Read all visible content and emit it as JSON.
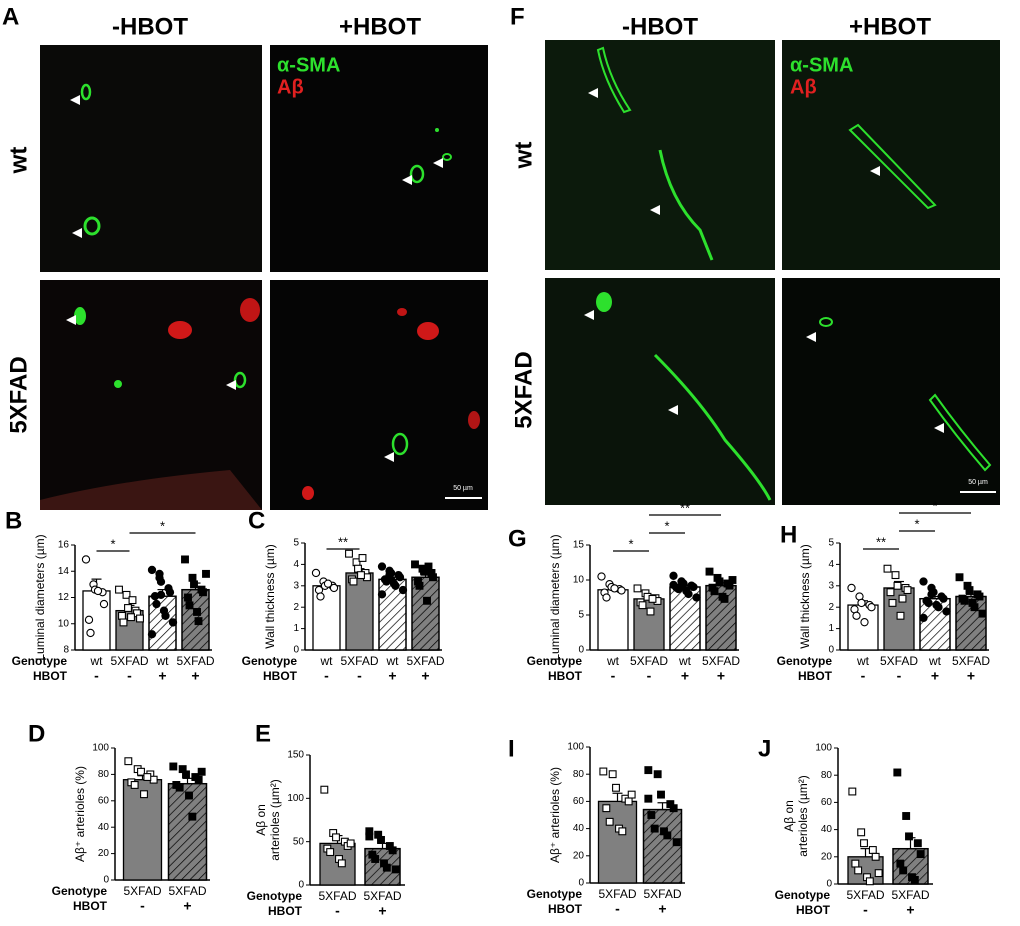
{
  "image_panels": [
    {
      "panel": "A",
      "columns": [
        "-HBOT",
        "+HBOT"
      ],
      "rows": [
        "wt",
        "5XFAD"
      ],
      "legend": [
        "α-SMA",
        "Aβ"
      ],
      "scale_bar": "50 µm"
    },
    {
      "panel": "F",
      "columns": [
        "-HBOT",
        "+HBOT"
      ],
      "rows": [
        "wt",
        "5XFAD"
      ],
      "legend": [
        "α-SMA",
        "Aβ"
      ],
      "scale_bar": "50 µm"
    }
  ],
  "chart_data": [
    {
      "type": "bar",
      "panel": "B",
      "ylabel": [
        "Luminal diameters (µm)"
      ],
      "row_labels": [
        "Genotype",
        "HBOT"
      ],
      "categories": [
        "wt",
        "5XFAD",
        "wt",
        "5XFAD"
      ],
      "hbot": [
        "-",
        "-",
        "+",
        "+"
      ],
      "values": [
        12.5,
        11.0,
        12.1,
        12.6
      ],
      "errors": [
        0.9,
        0.4,
        0.5,
        0.5
      ],
      "colors": [
        "#ffffff",
        "#808080",
        "#ffffff",
        "#808080"
      ],
      "hatched": [
        false,
        false,
        true,
        true
      ],
      "markers": [
        "circle",
        "square",
        "circle",
        "square"
      ],
      "filled": [
        false,
        false,
        true,
        true
      ],
      "points": [
        [
          14.9,
          13.0,
          12.6,
          12.4,
          11.5,
          10.3,
          9.3,
          12.5
        ],
        [
          12.6,
          12.2,
          11.2,
          11.0,
          10.8,
          10.6,
          10.1,
          10.5,
          11.8,
          10.4
        ],
        [
          14.1,
          13.8,
          13.2,
          12.7,
          12.4,
          12.1,
          11.5,
          11.0,
          10.6,
          10.1,
          9.2,
          13.5,
          12.2
        ],
        [
          14.9,
          13.5,
          13.0,
          12.6,
          12.4,
          12.0,
          11.4,
          10.9,
          10.2,
          13.8
        ]
      ],
      "ylim": [
        8,
        16
      ],
      "yticks": [
        8,
        10,
        12,
        14,
        16
      ],
      "significance": [
        {
          "label": "*",
          "pair": [
            0,
            1
          ]
        },
        {
          "label": "*",
          "pair": [
            1,
            3
          ]
        }
      ]
    },
    {
      "type": "bar",
      "panel": "C",
      "ylabel": [
        "Wall thickness (µm)"
      ],
      "row_labels": [
        "Genotype",
        "HBOT"
      ],
      "categories": [
        "wt",
        "5XFAD",
        "wt",
        "5XFAD"
      ],
      "hbot": [
        "-",
        "-",
        "+",
        "+"
      ],
      "values": [
        3.0,
        3.6,
        3.3,
        3.4
      ],
      "errors": [
        0.1,
        0.2,
        0.1,
        0.1
      ],
      "colors": [
        "#ffffff",
        "#808080",
        "#ffffff",
        "#808080"
      ],
      "hatched": [
        false,
        false,
        true,
        true
      ],
      "markers": [
        "circle",
        "square",
        "circle",
        "square"
      ],
      "filled": [
        false,
        false,
        true,
        true
      ],
      "points": [
        [
          3.6,
          3.2,
          3.0,
          3.0,
          2.9,
          2.8,
          2.5,
          3.1
        ],
        [
          4.5,
          4.1,
          3.8,
          3.6,
          3.4,
          3.3,
          3.2,
          3.5,
          4.3
        ],
        [
          3.9,
          3.7,
          3.6,
          3.5,
          3.4,
          3.3,
          3.2,
          3.1,
          3.0,
          2.8,
          2.6,
          3.5,
          3.3
        ],
        [
          4.0,
          3.8,
          3.7,
          3.6,
          3.4,
          3.2,
          3.0,
          2.3,
          3.9
        ]
      ],
      "ylim": [
        0,
        5
      ],
      "yticks": [
        0,
        1,
        2,
        3,
        4,
        5
      ],
      "significance": [
        {
          "label": "**",
          "pair": [
            0,
            1
          ]
        }
      ]
    },
    {
      "type": "bar",
      "panel": "G",
      "ylabel": [
        "Luminal diameters (µm)"
      ],
      "row_labels": [
        "Genotype",
        "HBOT"
      ],
      "categories": [
        "wt",
        "5XFAD",
        "wt",
        "5XFAD"
      ],
      "hbot": [
        "-",
        "-",
        "+",
        "+"
      ],
      "values": [
        8.6,
        7.3,
        9.0,
        9.2
      ],
      "errors": [
        0.5,
        0.4,
        0.2,
        0.4
      ],
      "colors": [
        "#ffffff",
        "#808080",
        "#ffffff",
        "#808080"
      ],
      "hatched": [
        false,
        false,
        true,
        true
      ],
      "markers": [
        "circle",
        "square",
        "circle",
        "square"
      ],
      "filled": [
        false,
        false,
        true,
        true
      ],
      "points": [
        [
          10.5,
          9.4,
          9.0,
          8.7,
          8.5,
          8.2,
          7.5,
          8.8
        ],
        [
          8.8,
          8.1,
          7.6,
          7.4,
          7.0,
          6.8,
          6.4,
          5.5,
          7.3
        ],
        [
          10.6,
          9.8,
          9.5,
          9.2,
          9.0,
          8.9,
          8.7,
          8.4,
          8.0,
          7.5,
          9.3,
          9.1
        ],
        [
          11.2,
          10.3,
          9.8,
          9.5,
          9.2,
          8.9,
          8.4,
          7.6,
          7.3,
          10.0
        ]
      ],
      "ylim": [
        0,
        15
      ],
      "yticks": [
        0,
        5,
        10,
        15
      ],
      "significance": [
        {
          "label": "*",
          "pair": [
            0,
            1
          ]
        },
        {
          "label": "*",
          "pair": [
            1,
            2
          ]
        },
        {
          "label": "**",
          "pair": [
            1,
            3
          ]
        }
      ]
    },
    {
      "type": "bar",
      "panel": "H",
      "ylabel": [
        "Wall thickness (µm)"
      ],
      "row_labels": [
        "Genotype",
        "HBOT"
      ],
      "categories": [
        "wt",
        "5XFAD",
        "wt",
        "5XFAD"
      ],
      "hbot": [
        "-",
        "-",
        "+",
        "+"
      ],
      "values": [
        2.1,
        2.9,
        2.4,
        2.5
      ],
      "errors": [
        0.2,
        0.3,
        0.1,
        0.1
      ],
      "colors": [
        "#ffffff",
        "#808080",
        "#ffffff",
        "#808080"
      ],
      "hatched": [
        false,
        false,
        true,
        true
      ],
      "markers": [
        "circle",
        "square",
        "circle",
        "square"
      ],
      "filled": [
        false,
        false,
        true,
        true
      ],
      "points": [
        [
          2.9,
          2.5,
          2.2,
          2.1,
          2.0,
          1.9,
          1.6,
          1.3
        ],
        [
          3.8,
          3.5,
          3.0,
          2.9,
          2.8,
          2.7,
          2.2,
          1.6,
          2.4
        ],
        [
          3.2,
          2.9,
          2.7,
          2.5,
          2.4,
          2.3,
          2.2,
          2.1,
          2.0,
          1.8,
          1.5,
          2.6
        ],
        [
          3.4,
          3.0,
          2.8,
          2.6,
          2.5,
          2.4,
          2.3,
          2.2,
          2.0,
          1.7
        ]
      ],
      "ylim": [
        0,
        5
      ],
      "yticks": [
        0,
        1,
        2,
        3,
        4,
        5
      ],
      "significance": [
        {
          "label": "**",
          "pair": [
            0,
            1
          ]
        },
        {
          "label": "*",
          "pair": [
            1,
            2
          ]
        },
        {
          "label": "*",
          "pair": [
            1,
            3
          ]
        }
      ]
    },
    {
      "type": "bar",
      "panel": "D",
      "ylabel": [
        "Aβ⁺ arterioles (%)"
      ],
      "row_labels": [
        "Genotype",
        "HBOT"
      ],
      "categories": [
        "5XFAD",
        "5XFAD"
      ],
      "hbot": [
        "-",
        "+"
      ],
      "values": [
        76,
        73
      ],
      "errors": [
        3,
        4
      ],
      "colors": [
        "#808080",
        "#808080"
      ],
      "hatched": [
        false,
        true
      ],
      "markers": [
        "square",
        "square"
      ],
      "filled": [
        false,
        true
      ],
      "points": [
        [
          90,
          84,
          82,
          80,
          76,
          74,
          72,
          65,
          78
        ],
        [
          86,
          84,
          80,
          78,
          76,
          72,
          70,
          64,
          48,
          82
        ]
      ],
      "ylim": [
        0,
        100
      ],
      "yticks": [
        0,
        20,
        40,
        60,
        80,
        100
      ],
      "significance": []
    },
    {
      "type": "bar",
      "panel": "E",
      "ylabel": [
        "Aβ on",
        "arterioles (µm²)"
      ],
      "row_labels": [
        "Genotype",
        "HBOT"
      ],
      "categories": [
        "5XFAD",
        "5XFAD"
      ],
      "hbot": [
        "-",
        "+"
      ],
      "values": [
        48,
        42
      ],
      "errors": [
        9,
        6
      ],
      "colors": [
        "#808080",
        "#808080"
      ],
      "hatched": [
        false,
        true
      ],
      "markers": [
        "square",
        "square"
      ],
      "filled": [
        false,
        true
      ],
      "points": [
        [
          110,
          60,
          55,
          50,
          45,
          42,
          38,
          30,
          25,
          48
        ],
        [
          62,
          58,
          52,
          45,
          40,
          35,
          30,
          25,
          20,
          18,
          56
        ]
      ],
      "ylim": [
        0,
        150
      ],
      "yticks": [
        0,
        50,
        100,
        150
      ],
      "significance": []
    },
    {
      "type": "bar",
      "panel": "I",
      "ylabel": [
        "Aβ⁺ arterioles (%)"
      ],
      "row_labels": [
        "Genotype",
        "HBOT"
      ],
      "categories": [
        "5XFAD",
        "5XFAD"
      ],
      "hbot": [
        "-",
        "+"
      ],
      "values": [
        60,
        54
      ],
      "errors": [
        6,
        5
      ],
      "colors": [
        "#808080",
        "#808080"
      ],
      "hatched": [
        false,
        true
      ],
      "markers": [
        "square",
        "square"
      ],
      "filled": [
        false,
        true
      ],
      "points": [
        [
          82,
          80,
          70,
          62,
          60,
          55,
          45,
          40,
          38,
          65
        ],
        [
          83,
          80,
          65,
          58,
          55,
          50,
          40,
          38,
          35,
          30,
          62
        ]
      ],
      "ylim": [
        0,
        100
      ],
      "yticks": [
        0,
        20,
        40,
        60,
        80,
        100
      ],
      "significance": []
    },
    {
      "type": "bar",
      "panel": "J",
      "ylabel": [
        "Aβ on",
        "arterioles (µm²)"
      ],
      "row_labels": [
        "Genotype",
        "HBOT"
      ],
      "categories": [
        "5XFAD",
        "5XFAD"
      ],
      "hbot": [
        "-",
        "+"
      ],
      "values": [
        20,
        26
      ],
      "errors": [
        6,
        8
      ],
      "colors": [
        "#808080",
        "#808080"
      ],
      "hatched": [
        false,
        true
      ],
      "markers": [
        "square",
        "square"
      ],
      "filled": [
        false,
        true
      ],
      "points": [
        [
          68,
          38,
          30,
          25,
          20,
          15,
          10,
          5,
          2,
          8
        ],
        [
          82,
          50,
          35,
          30,
          22,
          15,
          10,
          5,
          3
        ]
      ],
      "ylim": [
        0,
        100
      ],
      "yticks": [
        0,
        20,
        40,
        60,
        80,
        100
      ],
      "significance": []
    }
  ]
}
